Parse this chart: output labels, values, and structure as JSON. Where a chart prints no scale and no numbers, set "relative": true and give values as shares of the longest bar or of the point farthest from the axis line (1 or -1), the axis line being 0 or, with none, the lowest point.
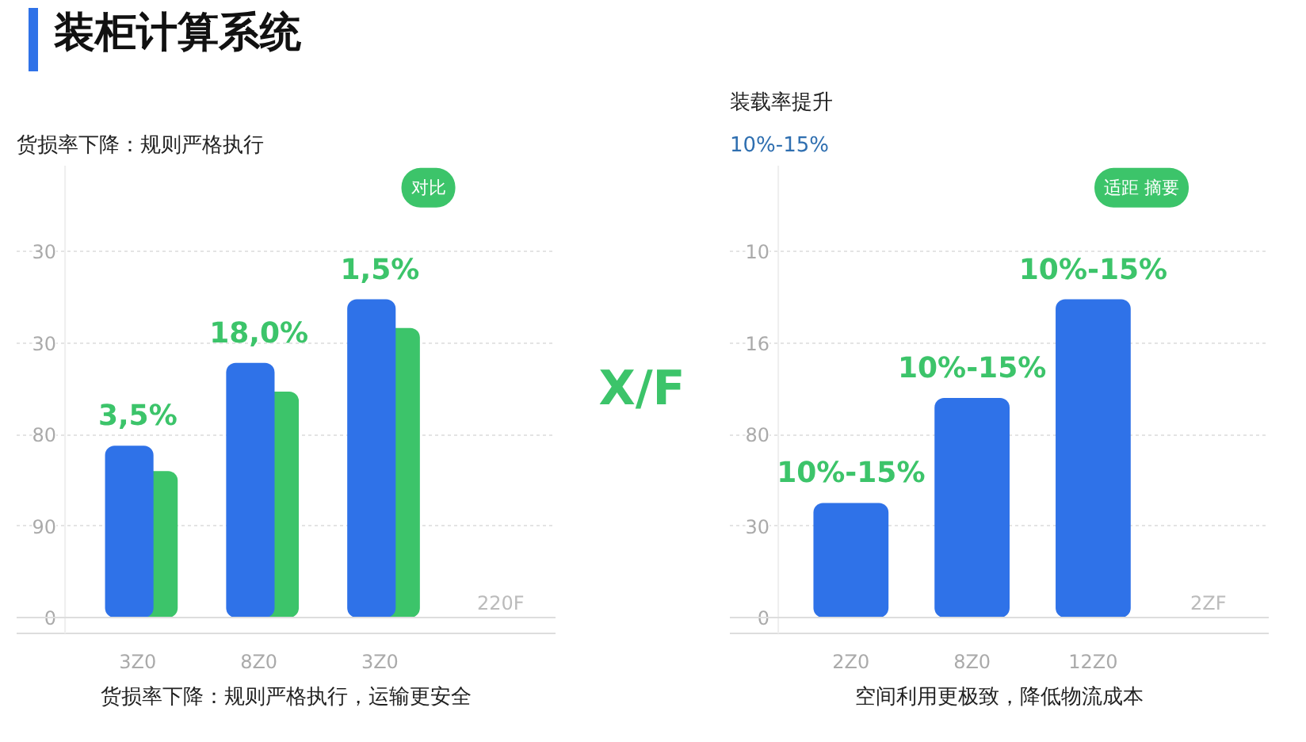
{
  "chart_data": [
    {
      "type": "bar",
      "title": "装柜计算系统",
      "subtitle": "货损率下降：规则严格执行",
      "xlabel": "货损率下降：规则严格执行，运输更安全",
      "categories": [
        "3Z0",
        "8Z0",
        "3Z0"
      ],
      "relative": true,
      "series": [
        {
          "color": "#3cc46a",
          "values": [
            0.46,
            0.71,
            0.91
          ]
        },
        {
          "color": "#2f72e8",
          "values": [
            0.54,
            0.8,
            1
          ]
        }
      ],
      "grid": "y",
      "annotations": [
        "对比",
        "220F",
        "0",
        "90",
        "80",
        "30",
        "30",
        "3,5%",
        "18,0%",
        "1,5%"
      ]
    },
    {
      "type": "other",
      "annotations": [
        "X/F"
      ]
    },
    {
      "type": "bar",
      "title": "装载率提升",
      "subtitle": "10%-15%",
      "xlabel": "空间利用更极致，降低物流成本",
      "categories": [
        "2Z0",
        "8Z0",
        "12Z0"
      ],
      "relative": true,
      "series": [
        {
          "color": "#2f72e8",
          "values": [
            0.36,
            0.69,
            1
          ]
        }
      ],
      "grid": "y",
      "annotations": [
        "适距 摘要",
        "2ZF",
        "0",
        "30",
        "80",
        "16",
        "10",
        "10%-15%",
        "10%-15%",
        "10%-15%"
      ]
    }
  ]
}
